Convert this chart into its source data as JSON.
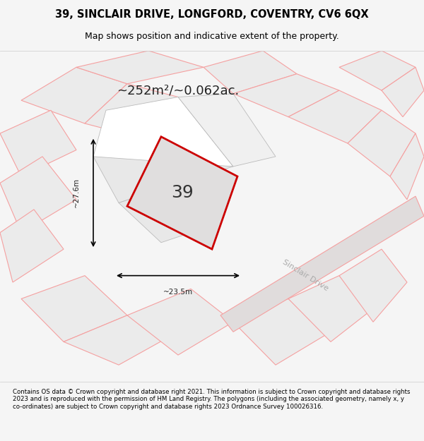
{
  "title_line1": "39, SINCLAIR DRIVE, LONGFORD, COVENTRY, CV6 6QX",
  "title_line2": "Map shows position and indicative extent of the property.",
  "area_text": "~252m²/~0.062ac.",
  "number_label": "39",
  "width_label": "~23.5m",
  "height_label": "~27.6m",
  "street_label": "Sinclair Drive",
  "footer_text": "Contains OS data © Crown copyright and database right 2021. This information is subject to Crown copyright and database rights 2023 and is reproduced with the permission of HM Land Registry. The polygons (including the associated geometry, namely x, y co-ordinates) are subject to Crown copyright and database rights 2023 Ordnance Survey 100026316.",
  "bg_color": "#f0eeee",
  "map_bg_color": "#e8e8e8",
  "plot_outline_color": "#cc0000",
  "other_outline_color": "#f5a0a0",
  "gray_outline_color": "#bbbbbb",
  "highlight_fill": "#e8e6e6",
  "plot_fill": "#e0dede",
  "fig_width": 6.0,
  "fig_height": 6.25
}
